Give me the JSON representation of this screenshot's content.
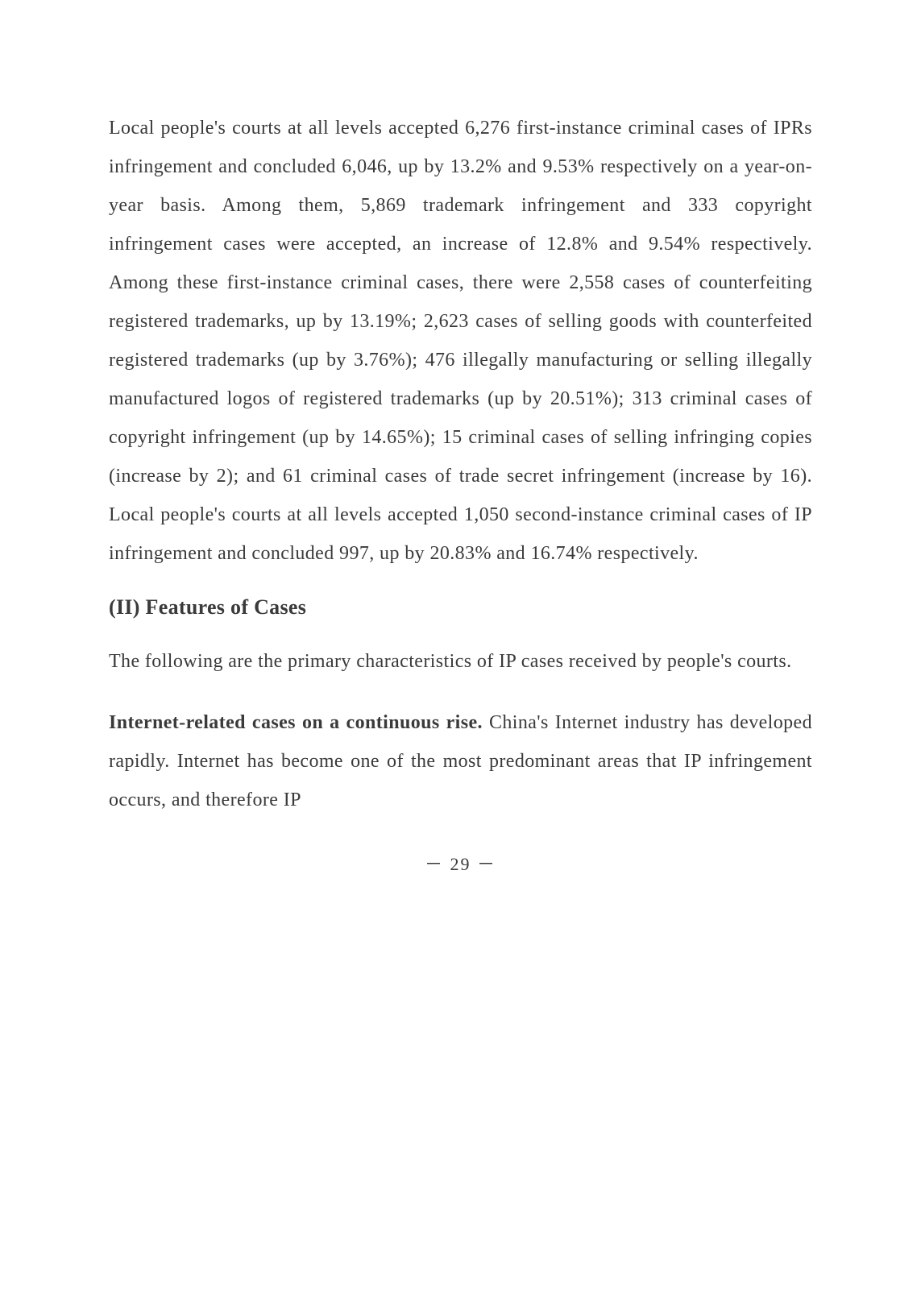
{
  "page": {
    "text_color": "#3a3a3a",
    "background_color": "#ffffff",
    "body_fontsize": 24,
    "heading_fontsize": 26,
    "line_height": 2.0,
    "paragraphs": {
      "p1": "Local people's courts at all levels accepted 6,276 first-instance criminal cases of IPRs infringement and concluded 6,046, up by 13.2% and 9.53% respectively on a year-on-year basis. Among them, 5,869 trademark infringement and 333 copyright infringement cases were accepted, an increase of 12.8% and 9.54% respectively. Among these first-instance criminal cases, there were 2,558 cases of counterfeiting registered trademarks, up by 13.19%; 2,623 cases of selling goods with counterfeited registered trademarks (up by 3.76%); 476 illegally manufacturing or selling illegally manufactured logos of registered trademarks (up by 20.51%); 313 criminal cases of copyright infringement (up by 14.65%); 15 criminal cases of selling infringing copies (increase by 2); and 61 criminal cases of trade secret infringement (increase by 16). Local people's courts at all levels accepted 1,050 second-instance criminal cases of IP infringement and concluded 997, up by 20.83% and 16.74% respectively.",
      "heading": "(II) Features of Cases",
      "p2": "The following are the primary characteristics of IP cases received by people's courts.",
      "p3_bold": "Internet-related cases on a continuous rise.",
      "p3_rest": " China's Internet industry has developed rapidly. Internet has become one of the most predominant areas that IP infringement occurs, and therefore IP"
    },
    "page_number": "－ 29 －"
  }
}
